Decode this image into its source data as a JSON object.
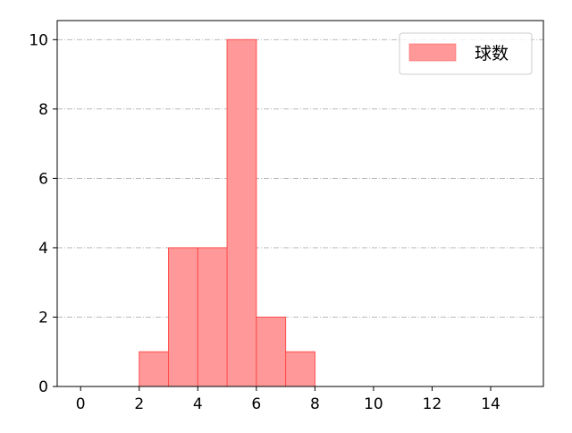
{
  "chart_data": {
    "type": "bar",
    "histogram": true,
    "bins": [
      [
        2,
        3
      ],
      [
        3,
        4
      ],
      [
        4,
        5
      ],
      [
        5,
        6
      ],
      [
        6,
        7
      ],
      [
        7,
        8
      ]
    ],
    "values": [
      1,
      4,
      4,
      10,
      2,
      1
    ],
    "xlim": [
      -0.8,
      15.8
    ],
    "ylim": [
      0,
      10.55
    ],
    "xticks": [
      0,
      2,
      4,
      6,
      8,
      10,
      12,
      14
    ],
    "yticks": [
      0,
      2,
      4,
      6,
      8,
      10
    ],
    "grid": {
      "axis": "y",
      "style": "dash-dot"
    },
    "legend": {
      "placement": "top-right",
      "entries": [
        "球数"
      ]
    },
    "colors": {
      "bar_fill": "#ff9999",
      "bar_edge": "#ff4d4d",
      "grid": "#b0b0b0"
    },
    "title": "",
    "xlabel": "",
    "ylabel": ""
  }
}
